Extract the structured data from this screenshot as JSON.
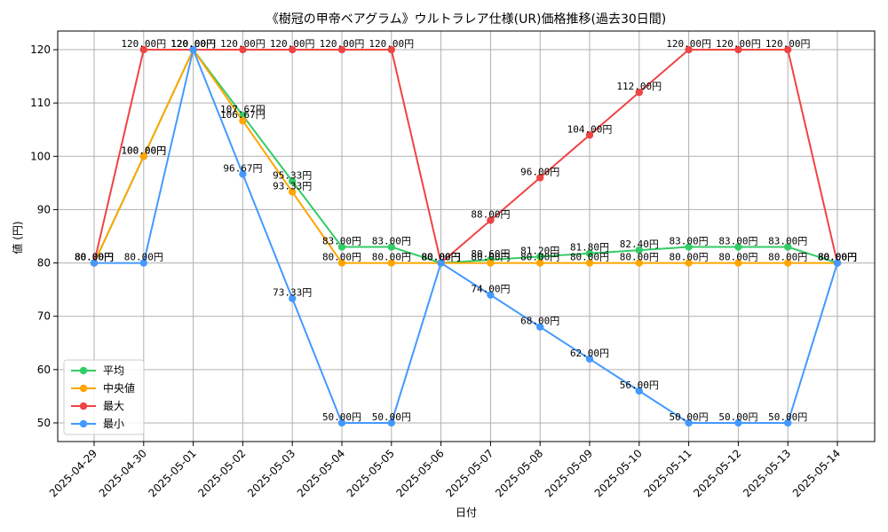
{
  "chart_data": {
    "type": "line",
    "title": "《樹冠の甲帝ベアグラム》ウルトラレア仕様(UR)価格推移(過去30日間)",
    "xlabel": "日付",
    "ylabel": "値 (円)",
    "ylim": [
      46.5,
      123.5
    ],
    "yticks": [
      50,
      60,
      70,
      80,
      90,
      100,
      110,
      120
    ],
    "grid": true,
    "legend_position": "lower-left",
    "label_suffix": "円",
    "x": [
      "2025-04-29",
      "2025-04-30",
      "2025-05-01",
      "2025-05-02",
      "2025-05-03",
      "2025-05-04",
      "2025-05-05",
      "2025-05-06",
      "2025-05-07",
      "2025-05-08",
      "2025-05-09",
      "2025-05-10",
      "2025-05-11",
      "2025-05-12",
      "2025-05-13",
      "2025-05-14"
    ],
    "series": [
      {
        "name": "平均",
        "color": "#33cc66",
        "values": [
          80,
          100,
          120,
          107.67,
          95.33,
          83,
          83,
          80,
          80.6,
          81.2,
          81.8,
          82.4,
          83,
          83,
          83,
          80
        ]
      },
      {
        "name": "中央値",
        "color": "#ffa500",
        "values": [
          80,
          100,
          120,
          106.67,
          93.33,
          80,
          80,
          80,
          80,
          80,
          80,
          80,
          80,
          80,
          80,
          80
        ]
      },
      {
        "name": "最大",
        "color": "#ef4444",
        "values": [
          80,
          120,
          120,
          120,
          120,
          120,
          120,
          80,
          88,
          96,
          104,
          112,
          120,
          120,
          120,
          80
        ]
      },
      {
        "name": "最小",
        "color": "#4499ff",
        "values": [
          80,
          80,
          120,
          96.67,
          73.33,
          50,
          50,
          80,
          74,
          68,
          62,
          56,
          50,
          50,
          50,
          80
        ]
      }
    ]
  }
}
